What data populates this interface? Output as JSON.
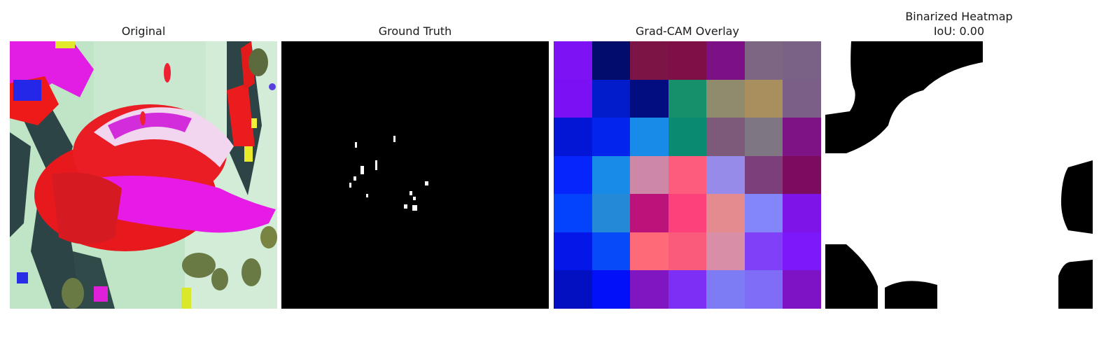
{
  "panels": {
    "original": {
      "title": "Original"
    },
    "ground_truth": {
      "title": "Ground Truth"
    },
    "gradcam": {
      "title": "Grad-CAM Overlay",
      "grid_colors": [
        [
          "#7d13f5",
          "#020d6b",
          "#7c1446",
          "#7e0f47",
          "#7b1184",
          "#7d6584",
          "#7a6286"
        ],
        [
          "#7c10f4",
          "#031ccb",
          "#020e80",
          "#15906a",
          "#908b6c",
          "#a88f5d",
          "#7b5f86"
        ],
        [
          "#0316d6",
          "#0224ed",
          "#178be7",
          "#0b8a72",
          "#7e5a7a",
          "#7e7683",
          "#7d1385"
        ],
        [
          "#0625fc",
          "#178be7",
          "#cc88a6",
          "#fd5c7c",
          "#978bea",
          "#7d3f7b",
          "#7c0d5e"
        ],
        [
          "#0343fc",
          "#248ad8",
          "#bc137b",
          "#fd427b",
          "#e38b8f",
          "#8286f8",
          "#7f14e8"
        ],
        [
          "#0417e8",
          "#064afa",
          "#fe6a78",
          "#fb5b7b",
          "#d98ea8",
          "#8040f7",
          "#7c19fb"
        ],
        [
          "#0310c2",
          "#0210f9",
          "#7f16c2",
          "#7e2ff5",
          "#7e7cf5",
          "#7f6df7",
          "#7e12c5"
        ]
      ]
    },
    "binarized": {
      "title_line1": "Binarized Heatmap",
      "title_line2": "IoU: 0.00"
    }
  },
  "colors": {
    "gt_background": "#000000",
    "gt_foreground": "#ffffff",
    "bin_background": "#ffffff",
    "bin_foreground": "#000000"
  }
}
